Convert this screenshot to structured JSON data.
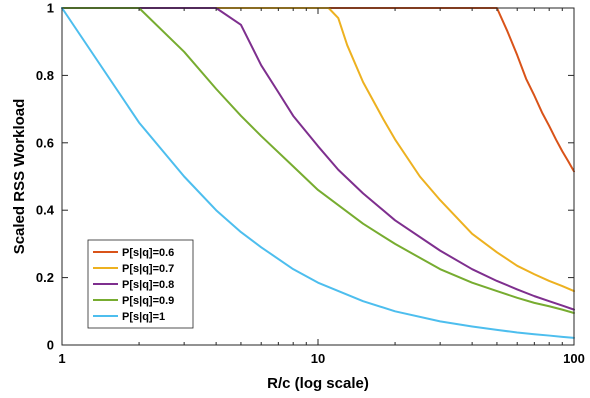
{
  "chart_data": {
    "type": "line",
    "xlabel": "R/c (log scale)",
    "ylabel": "Scaled RSS Workload",
    "xscale": "log",
    "xlim": [
      1,
      100
    ],
    "ylim": [
      0,
      1
    ],
    "x_ticks": [
      1,
      10,
      100
    ],
    "x_tick_labels": [
      "1",
      "10",
      "100"
    ],
    "y_ticks": [
      0,
      0.2,
      0.4,
      0.6,
      0.8,
      1
    ],
    "y_tick_labels": [
      "0",
      "0.2",
      "0.4",
      "0.6",
      "0.8",
      "1"
    ],
    "grid": false,
    "legend_position": "bottom-left",
    "series": [
      {
        "name": "P[s|q]=0.6",
        "color": "#D95319",
        "x": [
          1,
          50,
          55,
          60,
          65,
          70,
          75,
          80,
          85,
          90,
          95,
          100
        ],
        "y": [
          1,
          1,
          0.93,
          0.86,
          0.79,
          0.74,
          0.69,
          0.65,
          0.61,
          0.575,
          0.545,
          0.515
        ]
      },
      {
        "name": "P[s|q]=0.7",
        "color": "#EDB120",
        "x": [
          1,
          11,
          12,
          13,
          15,
          18,
          20,
          25,
          30,
          40,
          50,
          60,
          70,
          80,
          90,
          100
        ],
        "y": [
          1,
          1,
          0.97,
          0.89,
          0.78,
          0.67,
          0.61,
          0.5,
          0.43,
          0.33,
          0.275,
          0.235,
          0.21,
          0.19,
          0.175,
          0.16
        ]
      },
      {
        "name": "P[s|q]=0.8",
        "color": "#7E2F8E",
        "x": [
          1,
          4,
          5,
          6,
          7,
          8,
          10,
          12,
          15,
          20,
          30,
          40,
          50,
          60,
          70,
          80,
          90,
          100
        ],
        "y": [
          1,
          1,
          0.95,
          0.83,
          0.75,
          0.68,
          0.59,
          0.52,
          0.45,
          0.37,
          0.28,
          0.225,
          0.19,
          0.165,
          0.145,
          0.13,
          0.117,
          0.105
        ]
      },
      {
        "name": "P[s|q]=0.9",
        "color": "#77AC30",
        "x": [
          1,
          2,
          3,
          4,
          5,
          6,
          8,
          10,
          15,
          20,
          30,
          40,
          50,
          60,
          70,
          80,
          90,
          100
        ],
        "y": [
          1,
          1,
          0.87,
          0.76,
          0.68,
          0.62,
          0.53,
          0.46,
          0.36,
          0.3,
          0.225,
          0.185,
          0.16,
          0.14,
          0.125,
          0.115,
          0.105,
          0.095
        ]
      },
      {
        "name": "P[s|q]=1",
        "color": "#4DBEEE",
        "x": [
          1,
          2,
          3,
          4,
          5,
          6,
          8,
          10,
          15,
          20,
          30,
          40,
          50,
          60,
          70,
          80,
          90,
          100
        ],
        "y": [
          1,
          0.66,
          0.5,
          0.4,
          0.335,
          0.29,
          0.225,
          0.185,
          0.13,
          0.1,
          0.07,
          0.055,
          0.045,
          0.037,
          0.032,
          0.028,
          0.024,
          0.021
        ]
      }
    ]
  }
}
